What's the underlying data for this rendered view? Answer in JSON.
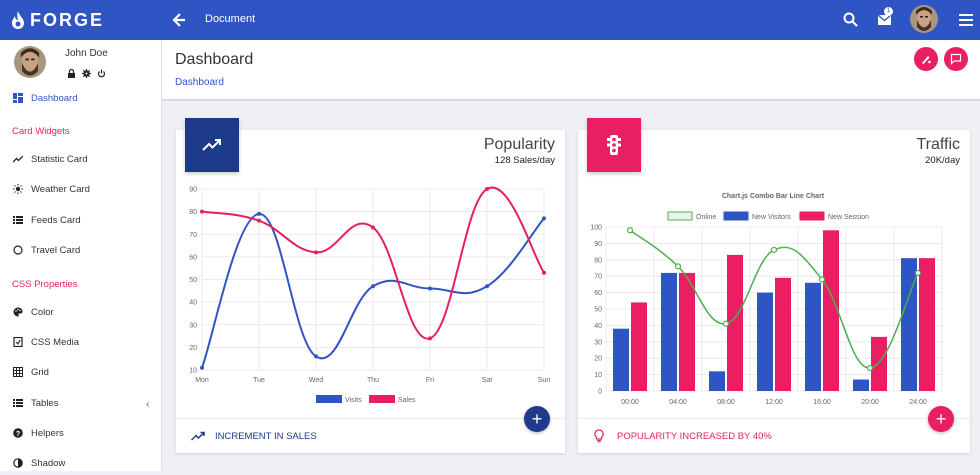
{
  "app": {
    "logo_text": "FORGE",
    "page_title": "Document",
    "notification_count": "1"
  },
  "user": {
    "name": "John Doe"
  },
  "sidebar": {
    "items": [
      {
        "label": "Dashboard",
        "icon": "dashboard-icon",
        "active": true
      },
      {
        "section": "Card Widgets"
      },
      {
        "label": "Statistic Card",
        "icon": "trending-icon"
      },
      {
        "label": "Weather Card",
        "icon": "sun-icon"
      },
      {
        "label": "Feeds Card",
        "icon": "list-icon"
      },
      {
        "label": "Travel Card",
        "icon": "circle-icon"
      },
      {
        "section": "CSS Properties"
      },
      {
        "label": "Color",
        "icon": "palette-icon"
      },
      {
        "label": "CSS Media",
        "icon": "media-icon"
      },
      {
        "label": "Grid",
        "icon": "grid-icon"
      },
      {
        "label": "Tables",
        "icon": "table-icon"
      },
      {
        "label": "Helpers",
        "icon": "help-icon"
      },
      {
        "label": "Shadow",
        "icon": "shadow-icon"
      }
    ]
  },
  "header": {
    "title": "Dashboard",
    "breadcrumb": "Dashboard"
  },
  "colors": {
    "primary": "#2f55c4",
    "accent": "#e91e63",
    "navy": "#1e3a8a",
    "green": "#4caf50"
  },
  "popularity_card": {
    "title": "Popularity",
    "subtitle": "128 Sales/day",
    "footer": "INCREMENT IN SALES"
  },
  "traffic_card": {
    "title": "Traffic",
    "subtitle": "20K/day",
    "footer": "POPULARITY INCREASED BY 40%"
  },
  "chart_data": [
    {
      "type": "line",
      "categories": [
        "Mon",
        "Tue",
        "Wed",
        "Thu",
        "Fri",
        "Sat",
        "Sun"
      ],
      "series": [
        {
          "name": "Visits",
          "values": [
            11,
            79,
            16,
            47,
            46,
            47,
            77
          ]
        },
        {
          "name": "Sales",
          "values": [
            80,
            76,
            62,
            73,
            24,
            90,
            53
          ]
        }
      ],
      "ylim": [
        10,
        90
      ],
      "yticks": [
        "10",
        "20",
        "30",
        "40",
        "50",
        "60",
        "70",
        "80",
        "90"
      ],
      "grid": true,
      "legend": "bottom"
    },
    {
      "type": "bar",
      "title": "Chart.js Combo Bar Line Chart",
      "categories": [
        "00:00",
        "04:00",
        "08:00",
        "12:00",
        "16:00",
        "20:00",
        "24:00"
      ],
      "series": [
        {
          "name": "Online",
          "type": "line",
          "values": [
            98,
            76,
            41,
            86,
            68,
            14,
            72
          ]
        },
        {
          "name": "New Visitors",
          "values": [
            38,
            72,
            12,
            60,
            66,
            7,
            81
          ]
        },
        {
          "name": "New Session",
          "values": [
            54,
            72,
            83,
            69,
            98,
            33,
            81
          ]
        }
      ],
      "ylim": [
        0,
        100
      ],
      "yticks": [
        "0",
        "10",
        "20",
        "30",
        "40",
        "50",
        "60",
        "70",
        "80",
        "90",
        "100"
      ],
      "grid": true,
      "legend": "top"
    }
  ]
}
